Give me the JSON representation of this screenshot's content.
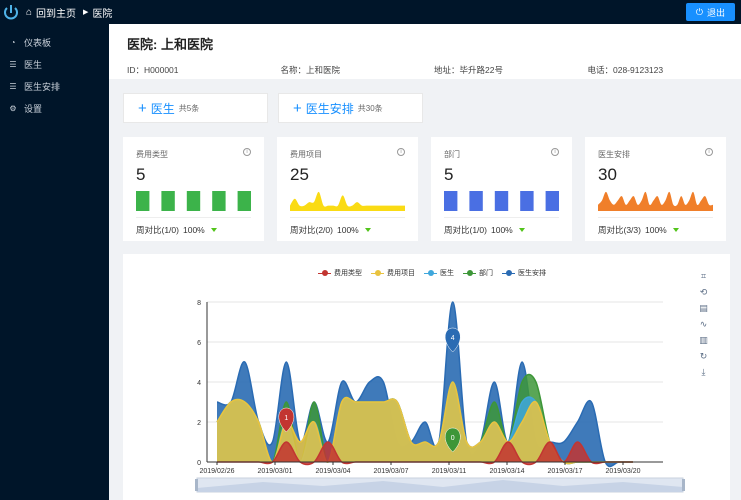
{
  "topbar": {
    "home_label": "回到主页",
    "crumb_label": "医院",
    "logout_label": "退出"
  },
  "sidebar": {
    "items": [
      {
        "label": "仪表板",
        "icon": "dashboard-icon"
      },
      {
        "label": "医生",
        "icon": "list-icon"
      },
      {
        "label": "医生安排",
        "icon": "list-icon"
      },
      {
        "label": "设置",
        "icon": "gear-icon"
      }
    ]
  },
  "header": {
    "title": "医院: 上和医院",
    "id": "ID：H000001",
    "name": "名称：上和医院",
    "address": "地址：毕升路22号",
    "phone": "电话：028-9123123"
  },
  "tiles": [
    {
      "label": "医生",
      "count": "共5条"
    },
    {
      "label": "医生安排",
      "count": "共30条"
    }
  ],
  "cards": [
    {
      "title": "费用类型",
      "value": "5",
      "compare": "周对比(1/0)",
      "percent": "100%",
      "type": "bar",
      "color": "#3cb34a",
      "points": [
        1,
        1,
        1,
        1,
        1
      ]
    },
    {
      "title": "费用项目",
      "value": "25",
      "compare": "周对比(2/0)",
      "percent": "100%",
      "type": "area",
      "color": "#fadb14",
      "points": [
        1,
        3,
        1,
        1,
        2,
        2,
        5,
        1,
        1,
        1,
        1,
        4,
        1,
        1,
        2,
        1,
        1,
        1,
        1,
        1,
        1,
        1,
        1,
        1,
        1
      ]
    },
    {
      "title": "部门",
      "value": "5",
      "compare": "周对比(1/0)",
      "percent": "100%",
      "type": "bar",
      "color": "#4a6fe3",
      "points": [
        1,
        1,
        1,
        1,
        1
      ]
    },
    {
      "title": "医生安排",
      "value": "30",
      "compare": "周对比(3/3)",
      "percent": "100%",
      "type": "area",
      "color": "#f07f2a",
      "points": [
        1,
        2,
        4,
        2,
        1,
        2,
        3,
        1,
        2,
        3,
        1,
        2,
        4,
        1,
        2,
        3,
        1,
        2,
        4,
        1,
        1,
        3,
        1,
        2,
        4,
        1,
        2,
        3,
        1,
        1
      ]
    }
  ],
  "chart_data": {
    "type": "area",
    "legend": [
      "费用类型",
      "费用项目",
      "医生",
      "部门",
      "医生安排"
    ],
    "x_tick_labels": [
      "2019/02/26",
      "2019/03/01",
      "2019/03/04",
      "2019/03/07",
      "2019/03/11",
      "2019/03/14",
      "2019/03/17",
      "2019/03/20"
    ],
    "ylim": [
      0,
      8
    ],
    "y_ticks": [
      0,
      2,
      4,
      6,
      8
    ],
    "series": [
      {
        "name": "费用类型",
        "color": "#c23531",
        "values": [
          0,
          0,
          0,
          0,
          0,
          1,
          0,
          0,
          1,
          0,
          0,
          0,
          0,
          0,
          0,
          0,
          0,
          0,
          0,
          0,
          0,
          1,
          0,
          0,
          1,
          0,
          1,
          0,
          0,
          0,
          0
        ]
      },
      {
        "name": "费用项目",
        "color": "#e9c33f",
        "values": [
          2,
          3,
          3,
          2,
          0,
          2,
          1,
          2,
          0,
          3,
          3,
          3,
          3,
          3,
          1,
          1,
          1,
          4,
          1,
          1,
          2,
          1,
          2,
          3,
          1,
          0,
          0,
          0,
          0,
          0,
          0
        ]
      },
      {
        "name": "医生",
        "color": "#3fa7dc",
        "values": [
          2,
          3,
          3,
          2,
          0,
          2,
          0,
          2,
          0,
          3,
          3,
          3,
          3,
          3,
          1,
          1,
          1,
          4,
          1,
          1,
          2,
          1,
          3,
          3,
          1,
          0,
          0,
          0,
          0,
          0,
          0
        ]
      },
      {
        "name": "部门",
        "color": "#3d9638",
        "values": [
          2,
          3,
          3,
          2,
          0,
          3,
          0,
          3,
          0,
          3,
          3,
          3,
          3,
          3,
          1,
          1,
          1,
          4,
          1,
          1,
          3,
          1,
          4,
          4,
          1,
          0,
          0,
          0,
          0,
          0,
          0
        ]
      },
      {
        "name": "医生安排",
        "color": "#2a6bb3",
        "values": [
          3,
          3,
          5,
          2,
          1,
          5,
          1,
          3,
          1,
          4,
          3,
          4,
          4,
          1,
          1,
          2,
          1,
          8,
          1,
          1,
          4,
          1,
          5,
          1,
          1,
          1,
          2,
          3,
          0,
          0,
          0
        ]
      }
    ],
    "markpoints": [
      {
        "series": "费用类型",
        "value": "1"
      },
      {
        "series": "医生安排",
        "value": "4"
      },
      {
        "series": "部门",
        "value": "0"
      }
    ]
  }
}
